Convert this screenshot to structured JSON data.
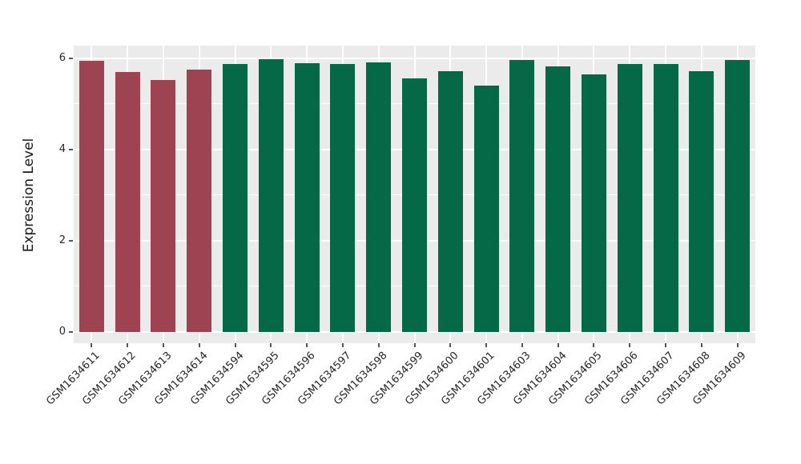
{
  "chart_data": {
    "type": "bar",
    "title": "",
    "xlabel": "",
    "ylabel": "Expression Level",
    "categories": [
      "GSM1634611",
      "GSM1634612",
      "GSM1634613",
      "GSM1634614",
      "GSM1634594",
      "GSM1634595",
      "GSM1634596",
      "GSM1634597",
      "GSM1634598",
      "GSM1634599",
      "GSM1634600",
      "GSM1634601",
      "GSM1634603",
      "GSM1634604",
      "GSM1634605",
      "GSM1634606",
      "GSM1634607",
      "GSM1634608",
      "GSM1634609"
    ],
    "values": [
      5.95,
      5.7,
      5.52,
      5.75,
      5.87,
      5.99,
      5.89,
      5.87,
      5.92,
      5.56,
      5.71,
      5.41,
      5.96,
      5.82,
      5.64,
      5.87,
      5.87,
      5.71,
      5.97
    ],
    "bar_groups": [
      "group1",
      "group1",
      "group1",
      "group1",
      "group2",
      "group2",
      "group2",
      "group2",
      "group2",
      "group2",
      "group2",
      "group2",
      "group2",
      "group2",
      "group2",
      "group2",
      "group2",
      "group2",
      "group2"
    ],
    "palette": {
      "group1": "#9E4352",
      "group2": "#056948"
    },
    "yticks": [
      0,
      2,
      4,
      6
    ],
    "yticks_minor": [
      1,
      3,
      5
    ],
    "ylim": [
      0,
      6.28
    ],
    "xtick_rotation": 45,
    "grid": true,
    "legend_position": "none",
    "panel_background": "#EBEBEB",
    "gridline_color": "#FFFFFF",
    "tick_mark_color": "#555555",
    "tick_label_color": "#262626"
  }
}
